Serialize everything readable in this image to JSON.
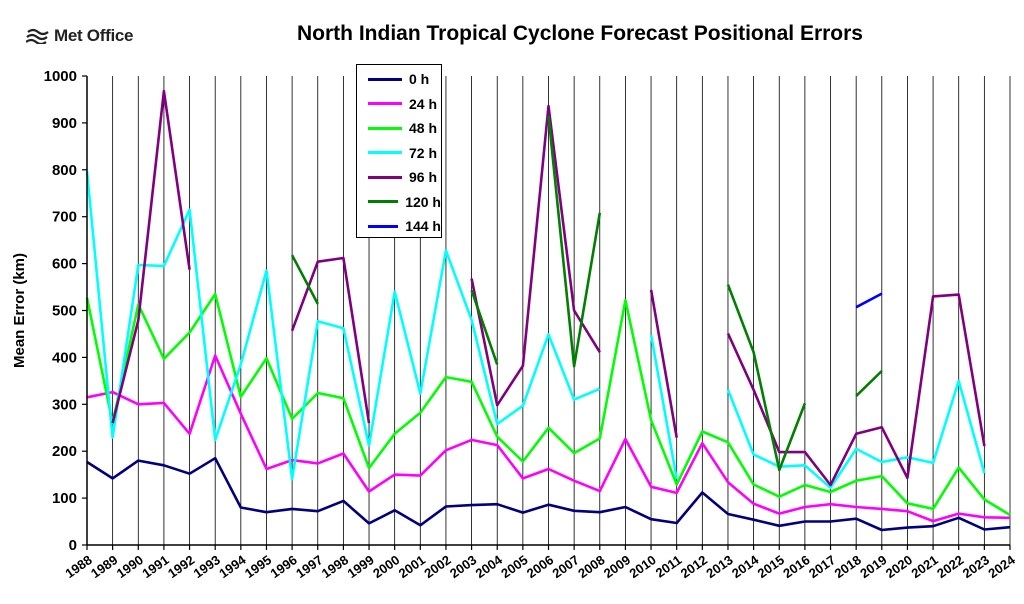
{
  "logo": {
    "text": "Met Office",
    "icon": "met-office-waves-icon"
  },
  "chart_data": {
    "type": "line",
    "title": "North Indian Tropical Cyclone Forecast Positional Errors",
    "xlabel": "",
    "ylabel": "Mean Error (km)",
    "ylim": [
      0,
      1000
    ],
    "yticks": [
      0,
      100,
      200,
      300,
      400,
      500,
      600,
      700,
      800,
      900,
      1000
    ],
    "grid": "vertical gridlines only",
    "legend_position": "top-center",
    "categories": [
      "1988",
      "1989",
      "1990",
      "1991",
      "1992",
      "1993",
      "1994",
      "1995",
      "1996",
      "1997",
      "1998",
      "1999",
      "2000",
      "2001",
      "2002",
      "2003",
      "2004",
      "2005",
      "2006",
      "2007",
      "2008",
      "2009",
      "2010",
      "2011",
      "2012",
      "2013",
      "2014",
      "2015",
      "2016",
      "2017",
      "2018",
      "2019",
      "2020",
      "2021",
      "2022",
      "2023",
      "2024"
    ],
    "series": [
      {
        "name": "0 h",
        "color": "#000080",
        "values": [
          177,
          142,
          180,
          170,
          152,
          185,
          80,
          70,
          77,
          72,
          94,
          46,
          74,
          42,
          82,
          85,
          87,
          69,
          86,
          73,
          70,
          81,
          55,
          47,
          112,
          66,
          54,
          41,
          50,
          50,
          56,
          32,
          37,
          40,
          58,
          33,
          38
        ]
      },
      {
        "name": "24 h",
        "color": "#ff00ff",
        "values": [
          315,
          326,
          300,
          303,
          237,
          404,
          280,
          162,
          181,
          174,
          195,
          114,
          150,
          148,
          202,
          224,
          213,
          142,
          162,
          137,
          115,
          226,
          124,
          111,
          217,
          134,
          88,
          67,
          81,
          87,
          81,
          77,
          72,
          51,
          67,
          59,
          58
        ]
      },
      {
        "name": "48 h",
        "color": "#00ff00",
        "values": [
          527,
          260,
          513,
          397,
          453,
          535,
          316,
          398,
          269,
          324,
          313,
          164,
          237,
          282,
          358,
          348,
          231,
          178,
          250,
          196,
          227,
          522,
          266,
          129,
          242,
          219,
          129,
          103,
          128,
          113,
          137,
          147,
          89,
          77,
          165,
          97,
          64
        ]
      },
      {
        "name": "72 h",
        "color": "#00ffff",
        "values": [
          797,
          229,
          597,
          595,
          715,
          224,
          385,
          585,
          141,
          477,
          462,
          212,
          540,
          323,
          628,
          480,
          258,
          297,
          449,
          310,
          333,
          null,
          448,
          141,
          null,
          331,
          193,
          167,
          170,
          122,
          205,
          177,
          187,
          175,
          350,
          153,
          null
        ]
      },
      {
        "name": "96 h",
        "color": "#800080",
        "values": [
          null,
          260,
          479,
          968,
          587,
          null,
          null,
          null,
          457,
          604,
          612,
          260,
          null,
          null,
          null,
          568,
          298,
          382,
          936,
          500,
          411,
          null,
          544,
          229,
          null,
          451,
          331,
          198,
          198,
          128,
          237,
          251,
          143,
          530,
          534,
          211,
          null
        ]
      },
      {
        "name": "120 h",
        "color": "#008000",
        "values": [
          null,
          null,
          null,
          null,
          null,
          null,
          null,
          null,
          618,
          514,
          null,
          null,
          null,
          null,
          null,
          543,
          385,
          null,
          915,
          381,
          708,
          null,
          null,
          null,
          null,
          555,
          411,
          160,
          302,
          null,
          318,
          371,
          null,
          null,
          null,
          null,
          null
        ]
      },
      {
        "name": "144 h",
        "color": "#0000ff",
        "values": [
          null,
          null,
          null,
          null,
          null,
          null,
          null,
          null,
          null,
          null,
          null,
          null,
          null,
          null,
          null,
          null,
          null,
          null,
          null,
          null,
          null,
          null,
          null,
          null,
          null,
          null,
          null,
          null,
          null,
          null,
          507,
          536,
          null,
          null,
          null,
          null,
          null
        ]
      }
    ]
  }
}
